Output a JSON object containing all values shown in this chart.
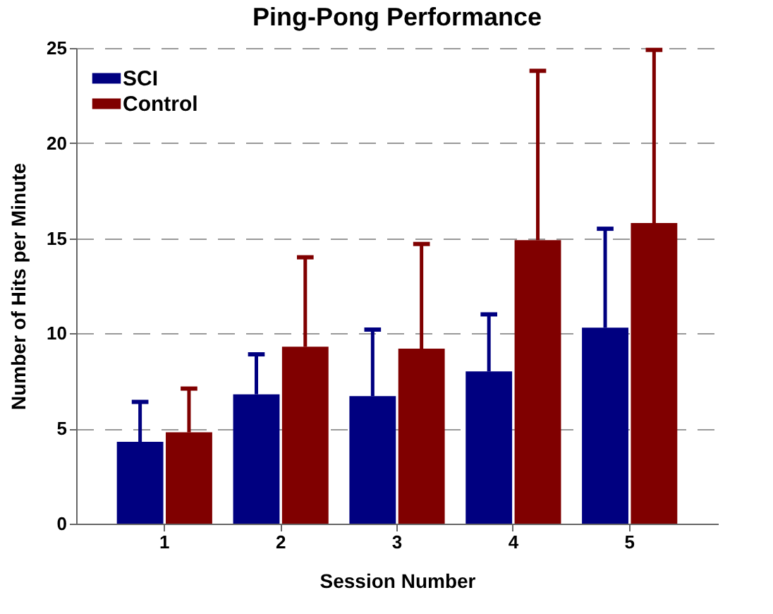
{
  "chart_data": {
    "type": "bar",
    "title": "Ping-Pong Performance",
    "xlabel": "Session Number",
    "ylabel": "Number of Hits per Minute",
    "categories": [
      "1",
      "2",
      "3",
      "4",
      "5"
    ],
    "series": [
      {
        "name": "SCI",
        "color": "#000080",
        "values": [
          4.3,
          6.8,
          6.7,
          8.0,
          10.3
        ],
        "errors": [
          [
            4.3,
            6.4
          ],
          [
            6.8,
            8.9
          ],
          [
            6.7,
            10.2
          ],
          [
            8.0,
            11.0
          ],
          [
            10.3,
            15.5
          ]
        ]
      },
      {
        "name": "Control",
        "color": "#800000",
        "values": [
          4.8,
          9.3,
          9.2,
          14.9,
          15.8
        ],
        "errors": [
          [
            4.8,
            7.1
          ],
          [
            9.3,
            14.0
          ],
          [
            9.2,
            14.7
          ],
          [
            14.9,
            23.8
          ],
          [
            15.8,
            24.9
          ]
        ]
      }
    ],
    "ylim": [
      0,
      25
    ],
    "yticks": [
      0,
      5,
      10,
      15,
      20,
      25
    ],
    "grid": "y",
    "legend": "top left"
  }
}
